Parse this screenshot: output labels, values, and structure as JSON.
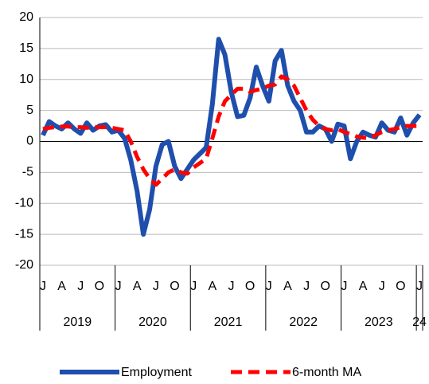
{
  "chart_data": {
    "type": "line",
    "categories": [
      "J",
      null,
      null,
      "A",
      null,
      null,
      "J",
      null,
      null,
      "O",
      null,
      null,
      "J",
      null,
      null,
      "A",
      null,
      null,
      "J",
      null,
      null,
      "O",
      null,
      null,
      "J",
      null,
      null,
      "A",
      null,
      null,
      "J",
      null,
      null,
      "O",
      null,
      null,
      "J",
      null,
      null,
      "A",
      null,
      null,
      "J",
      null,
      null,
      "O",
      null,
      null,
      "J",
      null,
      null,
      "A",
      null,
      null,
      "J",
      null,
      null,
      "O",
      null,
      null,
      "J"
    ],
    "year_groups": [
      "2019",
      "2020",
      "2021",
      "2022",
      "2023",
      "24"
    ],
    "series": [
      {
        "name": "Employment",
        "color": "#1f4fad",
        "values": [
          1,
          3.2,
          2.5,
          2,
          3,
          2,
          1.3,
          3,
          1.8,
          2.5,
          2.7,
          1.5,
          1.8,
          0.5,
          -3,
          -8,
          -15,
          -11,
          -4,
          -0.5,
          0,
          -4,
          -6,
          -4.5,
          -3,
          -2,
          -1,
          6,
          16.5,
          14,
          8,
          4,
          4.2,
          7,
          12,
          9,
          6.5,
          13,
          14.7,
          9,
          6.5,
          5,
          1.5,
          1.5,
          2.5,
          2,
          0,
          2.8,
          2.5,
          -2.8,
          0,
          1.5,
          1,
          0.7,
          3,
          1.8,
          1.5,
          3.8,
          1,
          3,
          4.3
        ]
      },
      {
        "name": "6-month MA",
        "color": "#ff0000",
        "dashed": true,
        "values": [
          2,
          2.2,
          2.3,
          2.4,
          2.4,
          2.3,
          2.3,
          2.2,
          2.3,
          2.3,
          2.3,
          2.2,
          2,
          1.8,
          0,
          -2.5,
          -4.5,
          -6,
          -7,
          -6,
          -5,
          -4.5,
          -5,
          -5.2,
          -4.2,
          -3.5,
          -2.8,
          0.5,
          4,
          6.5,
          7.5,
          8.5,
          8.5,
          8,
          8.3,
          8.5,
          9,
          9.2,
          10.5,
          10,
          9,
          7,
          5,
          3.5,
          2.5,
          2,
          1.8,
          2,
          1.5,
          1.2,
          0.8,
          0.6,
          0.5,
          1,
          1.5,
          1.8,
          2,
          2.3,
          2.5,
          2.5,
          2.5
        ]
      }
    ],
    "ylim": [
      -20,
      20
    ],
    "yticks": [
      -20,
      -15,
      -10,
      -5,
      0,
      5,
      10,
      15,
      20
    ],
    "grid": true,
    "legend": "bottom"
  }
}
